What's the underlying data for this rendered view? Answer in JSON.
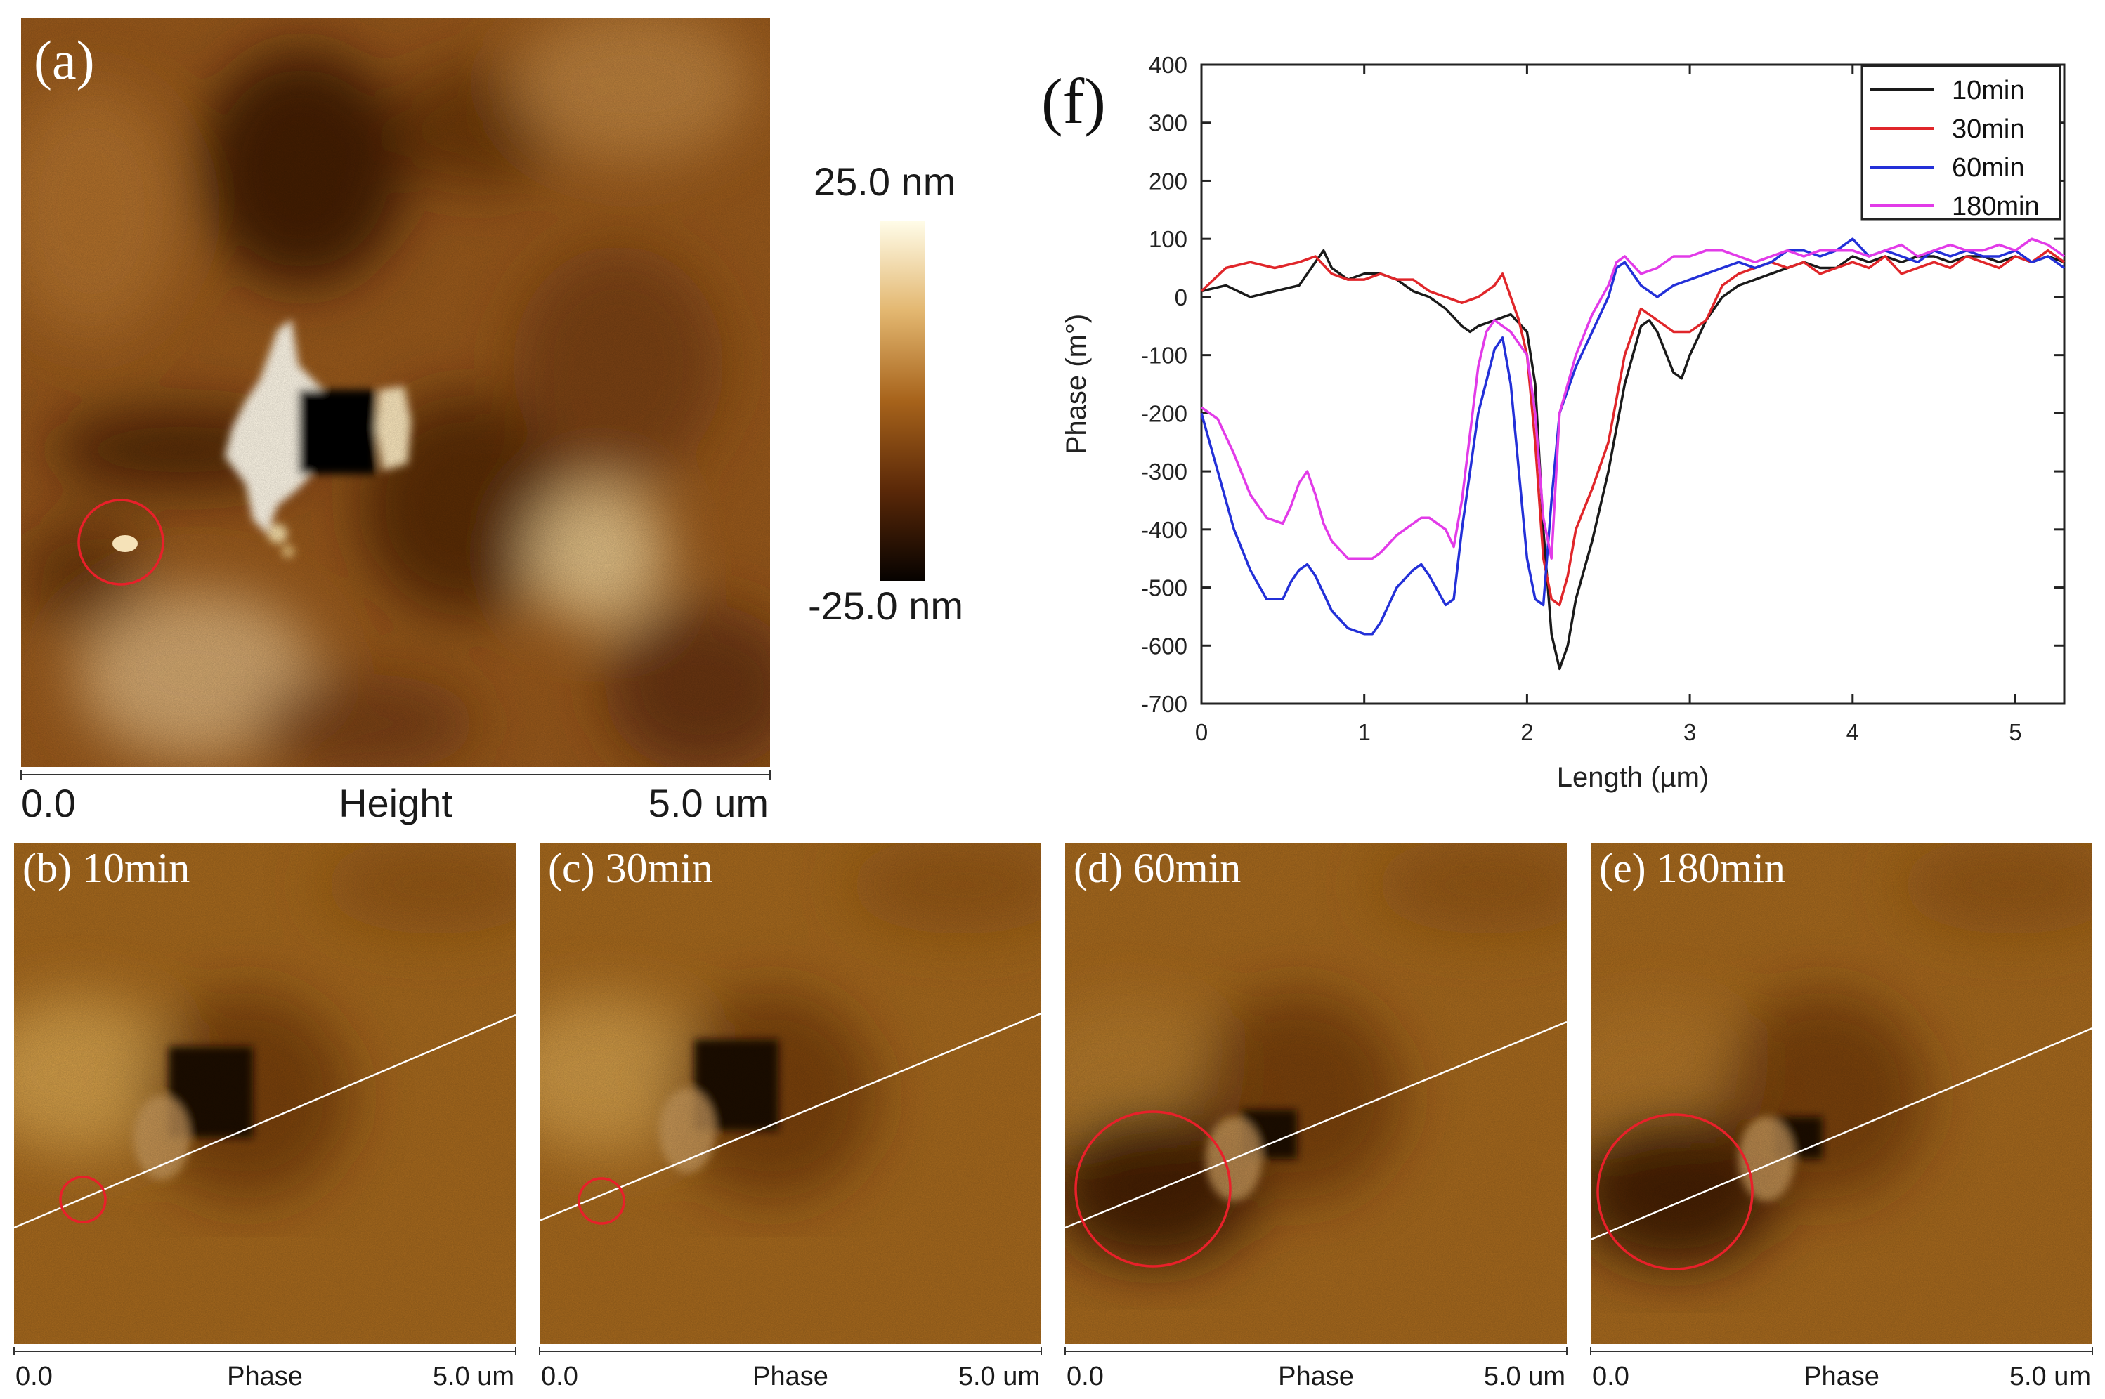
{
  "figure": {
    "panel_a": {
      "label": "(a)",
      "colorbar_max": "25.0 nm",
      "colorbar_min": "-25.0 nm",
      "axis_start": "0.0",
      "axis_title": "Height",
      "axis_end": "5.0 um"
    },
    "phase_panels": [
      {
        "label": "(b) 10min",
        "axis_start": "0.0",
        "axis_title": "Phase",
        "axis_end": "5.0 um"
      },
      {
        "label": "(c) 30min",
        "axis_start": "0.0",
        "axis_title": "Phase",
        "axis_end": "5.0 um"
      },
      {
        "label": "(d) 60min",
        "axis_start": "0.0",
        "axis_title": "Phase",
        "axis_end": "5.0 um"
      },
      {
        "label": "(e) 180min",
        "axis_start": "0.0",
        "axis_title": "Phase",
        "axis_end": "5.0 um"
      }
    ],
    "panel_f_label": "(f)"
  },
  "colors": {
    "trace_10min": "#1a1a1a",
    "trace_30min": "#e0262a",
    "trace_60min": "#2330d8",
    "trace_180min": "#e23be8",
    "annotation_circle": "#e8202a",
    "scan_line": "#ffffff"
  },
  "chart_data": {
    "type": "line",
    "title": "",
    "xlabel": "Length (µm)",
    "ylabel": "Phase (m°)",
    "xlim": [
      0,
      5.3
    ],
    "ylim": [
      -700,
      400
    ],
    "xticks": [
      0,
      1,
      2,
      3,
      4,
      5
    ],
    "yticks": [
      400,
      300,
      200,
      100,
      0,
      -100,
      -200,
      -300,
      -400,
      -500,
      -600,
      -700
    ],
    "legend_position": "top-right",
    "series": [
      {
        "name": "10min",
        "color": "#1a1a1a",
        "x": [
          0,
          0.15,
          0.3,
          0.45,
          0.6,
          0.7,
          0.75,
          0.8,
          0.9,
          1.0,
          1.1,
          1.2,
          1.3,
          1.4,
          1.5,
          1.6,
          1.65,
          1.7,
          1.8,
          1.9,
          2.0,
          2.05,
          2.1,
          2.15,
          2.2,
          2.25,
          2.3,
          2.4,
          2.5,
          2.6,
          2.7,
          2.75,
          2.8,
          2.9,
          2.95,
          3.0,
          3.1,
          3.2,
          3.3,
          3.4,
          3.5,
          3.6,
          3.7,
          3.8,
          3.9,
          4.0,
          4.1,
          4.2,
          4.3,
          4.4,
          4.5,
          4.6,
          4.7,
          4.8,
          4.9,
          5.0,
          5.1,
          5.2,
          5.3
        ],
        "y": [
          10,
          20,
          0,
          10,
          20,
          60,
          80,
          50,
          30,
          40,
          40,
          30,
          10,
          0,
          -20,
          -50,
          -60,
          -50,
          -40,
          -30,
          -60,
          -150,
          -400,
          -580,
          -640,
          -600,
          -520,
          -420,
          -300,
          -150,
          -50,
          -40,
          -60,
          -130,
          -140,
          -100,
          -40,
          0,
          20,
          30,
          40,
          50,
          60,
          50,
          50,
          70,
          60,
          70,
          60,
          70,
          70,
          60,
          70,
          70,
          60,
          70,
          60,
          70,
          60
        ]
      },
      {
        "name": "30min",
        "color": "#e0262a",
        "x": [
          0,
          0.15,
          0.3,
          0.45,
          0.6,
          0.7,
          0.8,
          0.9,
          1.0,
          1.1,
          1.2,
          1.3,
          1.4,
          1.5,
          1.6,
          1.7,
          1.8,
          1.85,
          1.9,
          1.95,
          2.0,
          2.05,
          2.1,
          2.15,
          2.2,
          2.25,
          2.3,
          2.4,
          2.5,
          2.6,
          2.7,
          2.8,
          2.9,
          3.0,
          3.1,
          3.2,
          3.3,
          3.4,
          3.5,
          3.6,
          3.7,
          3.8,
          3.9,
          4.0,
          4.1,
          4.2,
          4.3,
          4.4,
          4.5,
          4.6,
          4.7,
          4.8,
          4.9,
          5.0,
          5.1,
          5.2,
          5.3
        ],
        "y": [
          10,
          50,
          60,
          50,
          60,
          70,
          40,
          30,
          30,
          40,
          30,
          30,
          10,
          0,
          -10,
          0,
          20,
          40,
          0,
          -40,
          -100,
          -250,
          -450,
          -520,
          -530,
          -480,
          -400,
          -330,
          -250,
          -100,
          -20,
          -40,
          -60,
          -60,
          -40,
          20,
          40,
          50,
          60,
          50,
          60,
          40,
          50,
          60,
          50,
          70,
          40,
          50,
          60,
          50,
          70,
          60,
          50,
          70,
          60,
          80,
          60
        ]
      },
      {
        "name": "60min",
        "color": "#2330d8",
        "x": [
          0,
          0.1,
          0.2,
          0.3,
          0.4,
          0.5,
          0.55,
          0.6,
          0.65,
          0.7,
          0.75,
          0.8,
          0.9,
          1.0,
          1.05,
          1.1,
          1.2,
          1.3,
          1.35,
          1.4,
          1.5,
          1.55,
          1.6,
          1.7,
          1.8,
          1.85,
          1.9,
          1.95,
          2.0,
          2.05,
          2.1,
          2.15,
          2.2,
          2.3,
          2.4,
          2.5,
          2.55,
          2.6,
          2.7,
          2.8,
          2.9,
          3.0,
          3.1,
          3.2,
          3.3,
          3.4,
          3.5,
          3.6,
          3.7,
          3.8,
          3.9,
          4.0,
          4.1,
          4.2,
          4.3,
          4.4,
          4.5,
          4.6,
          4.7,
          4.8,
          4.9,
          5.0,
          5.1,
          5.2,
          5.3
        ],
        "y": [
          -200,
          -300,
          -400,
          -470,
          -520,
          -520,
          -490,
          -470,
          -460,
          -480,
          -510,
          -540,
          -570,
          -580,
          -580,
          -560,
          -500,
          -470,
          -460,
          -480,
          -530,
          -520,
          -400,
          -200,
          -90,
          -70,
          -150,
          -300,
          -450,
          -520,
          -530,
          -350,
          -200,
          -120,
          -60,
          0,
          50,
          60,
          20,
          0,
          20,
          30,
          40,
          50,
          60,
          50,
          60,
          80,
          80,
          70,
          80,
          100,
          70,
          80,
          70,
          60,
          80,
          70,
          80,
          70,
          70,
          80,
          60,
          70,
          50
        ]
      },
      {
        "name": "180min",
        "color": "#e23be8",
        "x": [
          0,
          0.1,
          0.2,
          0.3,
          0.4,
          0.5,
          0.55,
          0.6,
          0.65,
          0.7,
          0.75,
          0.8,
          0.9,
          1.0,
          1.05,
          1.1,
          1.2,
          1.3,
          1.35,
          1.4,
          1.5,
          1.55,
          1.6,
          1.7,
          1.75,
          1.8,
          1.85,
          1.9,
          1.95,
          2.0,
          2.05,
          2.1,
          2.15,
          2.2,
          2.3,
          2.4,
          2.5,
          2.55,
          2.6,
          2.7,
          2.8,
          2.9,
          3.0,
          3.1,
          3.2,
          3.3,
          3.4,
          3.5,
          3.6,
          3.7,
          3.8,
          3.9,
          4.0,
          4.1,
          4.2,
          4.3,
          4.4,
          4.5,
          4.6,
          4.7,
          4.8,
          4.9,
          5.0,
          5.1,
          5.2,
          5.3
        ],
        "y": [
          -190,
          -210,
          -270,
          -340,
          -380,
          -390,
          -360,
          -320,
          -300,
          -340,
          -390,
          -420,
          -450,
          -450,
          -450,
          -440,
          -410,
          -390,
          -380,
          -380,
          -400,
          -430,
          -350,
          -120,
          -60,
          -40,
          -50,
          -60,
          -80,
          -100,
          -200,
          -380,
          -450,
          -200,
          -100,
          -30,
          20,
          60,
          70,
          40,
          50,
          70,
          70,
          80,
          80,
          70,
          60,
          70,
          80,
          70,
          80,
          80,
          80,
          70,
          80,
          90,
          70,
          80,
          90,
          80,
          80,
          90,
          80,
          100,
          90,
          70
        ]
      }
    ]
  }
}
